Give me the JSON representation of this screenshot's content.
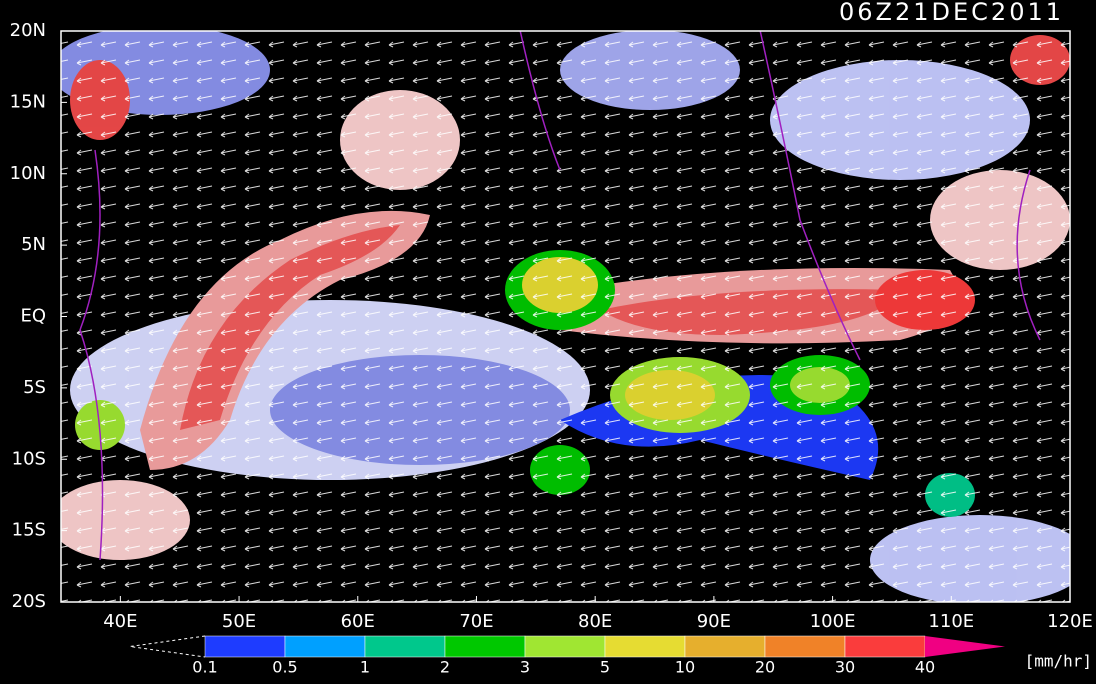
{
  "map": {
    "title": "06Z21DEC2011",
    "lon_range": [
      35,
      120
    ],
    "lat_range": [
      -20,
      20
    ],
    "lat_ticks": [
      {
        "value": 20,
        "label": "20N"
      },
      {
        "value": 15,
        "label": "15N"
      },
      {
        "value": 10,
        "label": "10N"
      },
      {
        "value": 5,
        "label": "5N"
      },
      {
        "value": 0,
        "label": "EQ"
      },
      {
        "value": -5,
        "label": "5S"
      },
      {
        "value": -10,
        "label": "10S"
      },
      {
        "value": -15,
        "label": "15S"
      },
      {
        "value": -20,
        "label": "20S"
      }
    ],
    "lon_ticks": [
      {
        "value": 40,
        "label": "40E"
      },
      {
        "value": 50,
        "label": "50E"
      },
      {
        "value": 60,
        "label": "60E"
      },
      {
        "value": 70,
        "label": "70E"
      },
      {
        "value": 80,
        "label": "80E"
      },
      {
        "value": 90,
        "label": "90E"
      },
      {
        "value": 100,
        "label": "100E"
      },
      {
        "value": 110,
        "label": "110E"
      },
      {
        "value": 120,
        "label": "120E"
      }
    ],
    "colorbar": {
      "labels": [
        "0.1",
        "0.5",
        "1",
        "2",
        "3",
        "5",
        "10",
        "20",
        "30",
        "40"
      ],
      "colors": [
        "#1e3cff",
        "#00a0ff",
        "#00c88c",
        "#00c800",
        "#a0e632",
        "#e6dc32",
        "#e6af2d",
        "#f08228",
        "#fa3c3c"
      ],
      "over_color": "#f00082",
      "unit": "[mm/hr]"
    }
  }
}
